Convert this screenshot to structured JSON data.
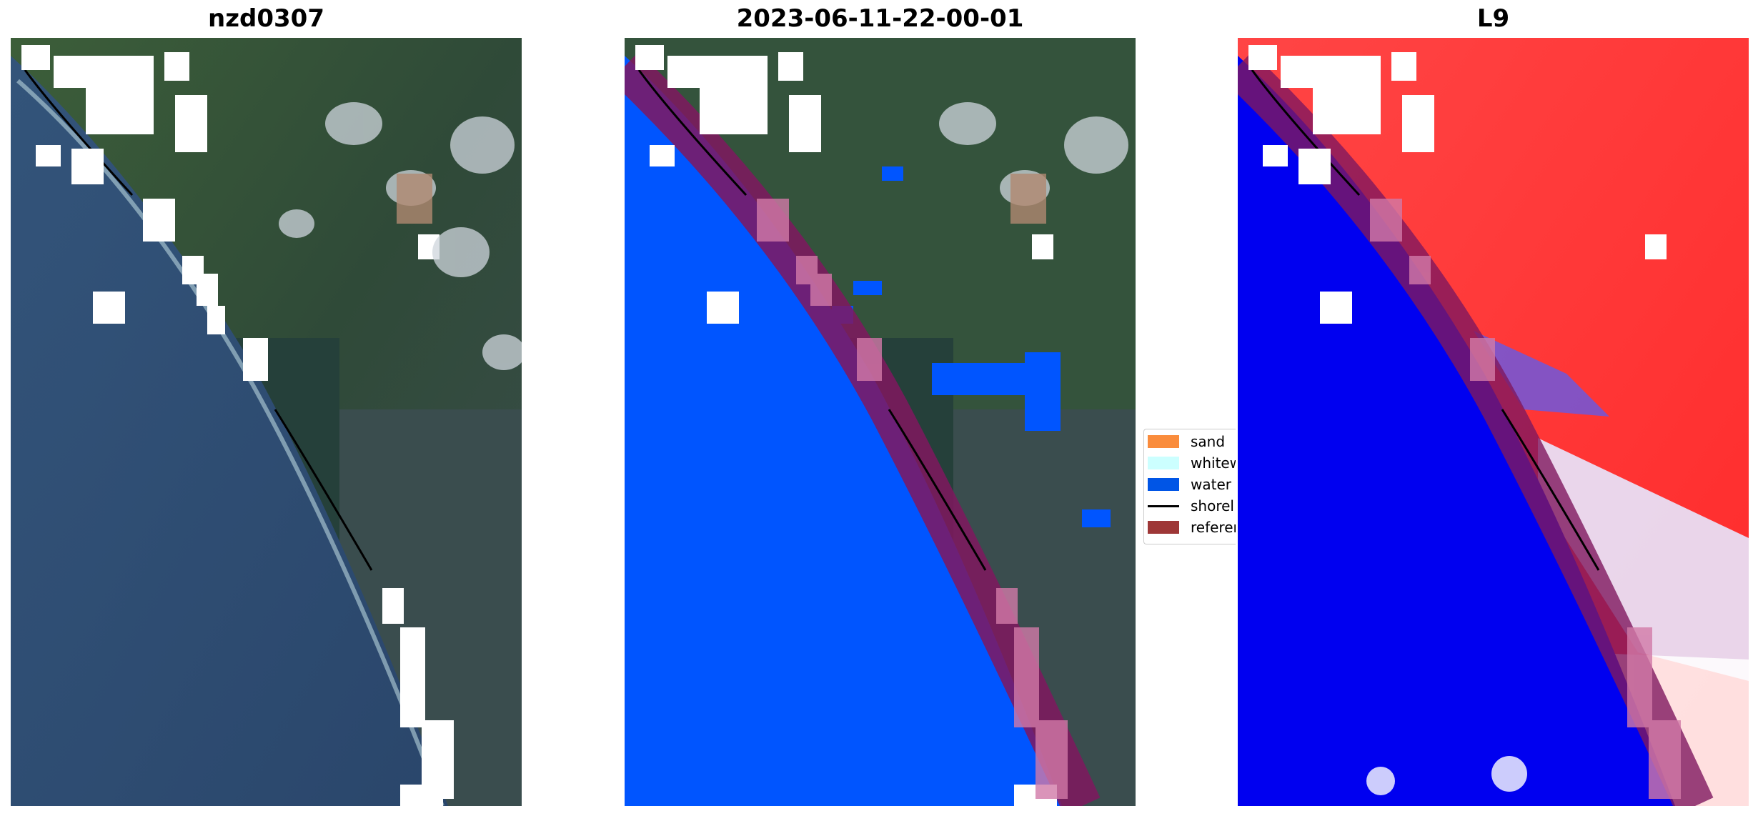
{
  "panels": [
    {
      "title": "nzd0307"
    },
    {
      "title": "2023-06-11-22-00-01"
    },
    {
      "title": "L9"
    }
  ],
  "legend": {
    "items": [
      {
        "label": "sand",
        "color": "#fa8c3c",
        "kind": "patch"
      },
      {
        "label": "whitew",
        "color": "#ccffff",
        "kind": "patch"
      },
      {
        "label": "water",
        "color": "#0055e6",
        "kind": "patch"
      },
      {
        "label": "shorel",
        "color": "#000000",
        "kind": "line"
      },
      {
        "label": "referen",
        "color": "#9e3737",
        "kind": "patch"
      }
    ]
  },
  "colors": {
    "sea_rgb": "#2c4a6f",
    "land_green": "#3e5e3a",
    "water_class": "#0055ff",
    "reference_band": "#80185f",
    "index_blue": "#0000f0",
    "index_red": "#ff3030",
    "cloud_mask": "#ffffff"
  }
}
